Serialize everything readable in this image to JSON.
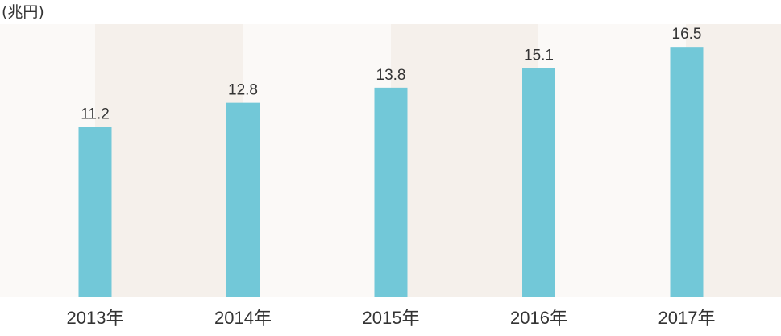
{
  "chart_data": {
    "type": "bar",
    "title": "",
    "unit_label": "(兆円)",
    "xlabel": "",
    "ylabel": "",
    "categories": [
      "2013年",
      "2014年",
      "2015年",
      "2016年",
      "2017年"
    ],
    "values": [
      11.2,
      12.8,
      13.8,
      15.1,
      16.5
    ],
    "value_labels": [
      "11.2",
      "12.8",
      "13.8",
      "15.1",
      "16.5"
    ],
    "ylim": [
      0,
      18
    ],
    "grid": false,
    "legend": "none",
    "colors": {
      "bar": "#72c8d8",
      "band_light": "#fbf9f7",
      "band_dark": "#f5f0eb",
      "text": "#333333"
    }
  }
}
